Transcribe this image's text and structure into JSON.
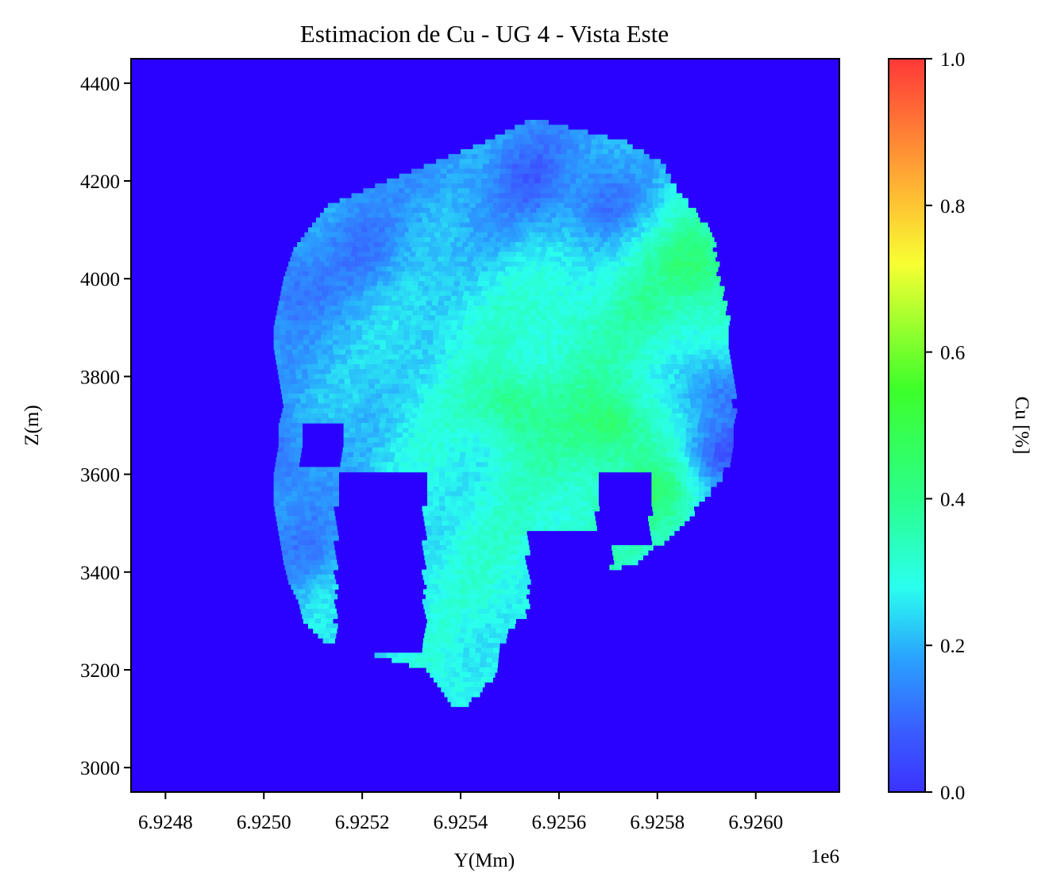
{
  "chart_data": {
    "type": "heatmap",
    "title": "Estimacion de Cu - UG 4 - Vista Este",
    "xlabel": "Y(Mm)",
    "ylabel": "Z(m)",
    "x_offset_label": "1e6",
    "xlim": [
      6.92473,
      6.92617
    ],
    "ylim": [
      2950,
      4450
    ],
    "x_ticks": [
      6.9248,
      6.925,
      6.9252,
      6.9254,
      6.9256,
      6.9258,
      6.926
    ],
    "x_tick_labels": [
      "6.9248",
      "6.9250",
      "6.9252",
      "6.9254",
      "6.9256",
      "6.9258",
      "6.9260"
    ],
    "y_ticks": [
      3000,
      3200,
      3400,
      3600,
      3800,
      4000,
      4200,
      4400
    ],
    "y_tick_labels": [
      "3000",
      "3200",
      "3400",
      "3600",
      "3800",
      "4000",
      "4200",
      "4400"
    ],
    "background_value": 0.0,
    "background_color": "#2a00ff",
    "colorbar": {
      "label": "Cu [%]",
      "range": [
        0.0,
        1.0
      ],
      "ticks": [
        0.0,
        0.2,
        0.4,
        0.6,
        0.8,
        1.0
      ],
      "tick_labels": [
        "0.0",
        "0.2",
        "0.4",
        "0.6",
        "0.8",
        "1.0"
      ],
      "colormap": "gist_rainbow_r"
    },
    "zones": [
      {
        "center": [
          6.92554,
          4200
        ],
        "value": 0.08
      },
      {
        "center": [
          6.92568,
          4160
        ],
        "value": 0.1
      },
      {
        "center": [
          6.92536,
          4230
        ],
        "value": 0.16
      },
      {
        "center": [
          6.9252,
          4060
        ],
        "value": 0.12
      },
      {
        "center": [
          6.92505,
          3980
        ],
        "value": 0.1
      },
      {
        "center": [
          6.92514,
          3870
        ],
        "value": 0.2
      },
      {
        "center": [
          6.9253,
          3860
        ],
        "value": 0.26
      },
      {
        "center": [
          6.92545,
          3900
        ],
        "value": 0.3
      },
      {
        "center": [
          6.92562,
          3920
        ],
        "value": 0.34
      },
      {
        "center": [
          6.92578,
          3940
        ],
        "value": 0.38
      },
      {
        "center": [
          6.92587,
          4020
        ],
        "value": 0.46
      },
      {
        "center": [
          6.9255,
          3740
        ],
        "value": 0.44
      },
      {
        "center": [
          6.9257,
          3700
        ],
        "value": 0.48
      },
      {
        "center": [
          6.9258,
          3560
        ],
        "value": 0.44
      },
      {
        "center": [
          6.92592,
          3760
        ],
        "value": 0.1
      },
      {
        "center": [
          6.92593,
          3650
        ],
        "value": 0.06
      },
      {
        "center": [
          6.925,
          3620
        ],
        "value": 0.08
      },
      {
        "center": [
          6.92508,
          3450
        ],
        "value": 0.13
      },
      {
        "center": [
          6.92511,
          3320
        ],
        "value": 0.24
      },
      {
        "center": [
          6.9254,
          3620
        ],
        "value": 0.28
      },
      {
        "center": [
          6.9256,
          3440
        ],
        "value": 0.32
      },
      {
        "center": [
          6.92545,
          3380
        ],
        "value": 0.3
      },
      {
        "center": [
          6.9254,
          3250
        ],
        "value": 0.27
      },
      {
        "center": [
          6.9254,
          3150
        ],
        "value": 0.3
      }
    ],
    "shape_left_boundary": [
      [
        4320,
        6.92553
      ],
      [
        4280,
        6.92545
      ],
      [
        4240,
        6.92535
      ],
      [
        4200,
        6.92525
      ],
      [
        4150,
        6.92513
      ],
      [
        4100,
        6.92509
      ],
      [
        4060,
        6.92506
      ],
      [
        4000,
        6.92504
      ],
      [
        3950,
        6.92503
      ],
      [
        3900,
        6.92502
      ],
      [
        3860,
        6.92502
      ],
      [
        3800,
        6.92503
      ],
      [
        3740,
        6.92504
      ],
      [
        3700,
        6.92503
      ],
      [
        3660,
        6.92503
      ],
      [
        3600,
        6.92502
      ],
      [
        3540,
        6.92502
      ],
      [
        3480,
        6.92503
      ],
      [
        3420,
        6.92504
      ],
      [
        3380,
        6.92505
      ],
      [
        3340,
        6.92507
      ],
      [
        3300,
        6.92508
      ],
      [
        3260,
        6.92512
      ],
      [
        3200,
        6.92533
      ],
      [
        3160,
        6.92536
      ],
      [
        3130,
        6.92538
      ]
    ],
    "shape_right_boundary": [
      [
        4320,
        6.92557
      ],
      [
        4280,
        6.92573
      ],
      [
        4240,
        6.9258
      ],
      [
        4200,
        6.92582
      ],
      [
        4150,
        6.92586
      ],
      [
        4100,
        6.9259
      ],
      [
        4060,
        6.92591
      ],
      [
        4000,
        6.92592
      ],
      [
        3950,
        6.92593
      ],
      [
        3900,
        6.92594
      ],
      [
        3860,
        6.92594
      ],
      [
        3800,
        6.92595
      ],
      [
        3740,
        6.92595
      ],
      [
        3700,
        6.92595
      ],
      [
        3660,
        6.92595
      ],
      [
        3600,
        6.92593
      ],
      [
        3540,
        6.92588
      ],
      [
        3480,
        6.92583
      ],
      [
        3420,
        6.92575
      ],
      [
        3380,
        6.92562
      ],
      [
        3340,
        6.92557
      ],
      [
        3300,
        6.92551
      ],
      [
        3260,
        6.92548
      ],
      [
        3200,
        6.92547
      ],
      [
        3160,
        6.92544
      ],
      [
        3130,
        6.92541
      ]
    ],
    "shape_interior_gaps": [
      {
        "z_range": [
          3240,
          3600
        ],
        "y_range": [
          6.92514,
          6.92532
        ],
        "value": 0.0
      },
      {
        "z_range": [
          3620,
          3700
        ],
        "y_range": [
          6.92507,
          6.92515
        ],
        "value": 0.0
      },
      {
        "z_range": [
          3460,
          3600
        ],
        "y_range": [
          6.92567,
          6.92578
        ],
        "value": 0.0
      },
      {
        "z_range": [
          3200,
          3480
        ],
        "y_range": [
          6.92553,
          6.9257
        ],
        "value": 0.0
      }
    ]
  }
}
